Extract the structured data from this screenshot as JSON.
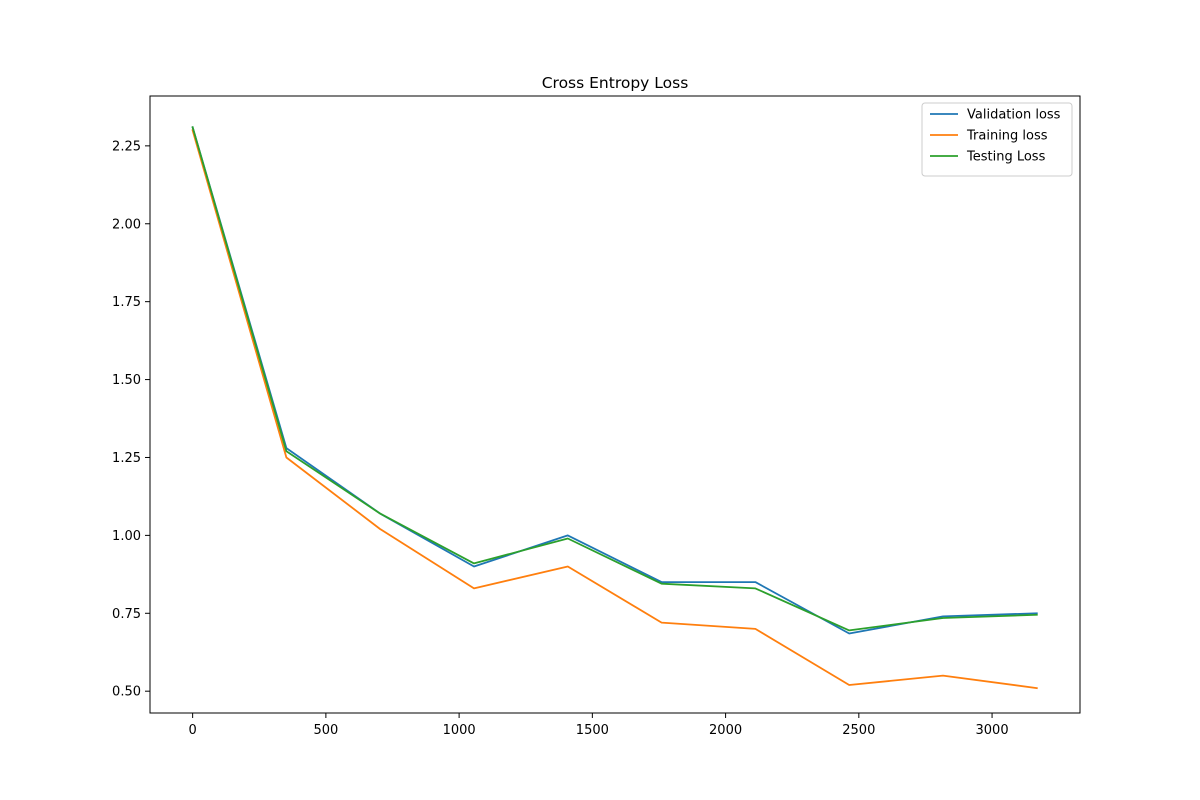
{
  "chart_data": {
    "type": "line",
    "title": "Cross Entropy Loss",
    "xlabel": "",
    "ylabel": "",
    "xlim": [
      -160,
      3330
    ],
    "ylim": [
      0.43,
      2.41
    ],
    "xticks": [
      0,
      500,
      1000,
      1500,
      2000,
      2500,
      3000
    ],
    "xtick_labels": [
      "0",
      "500",
      "1000",
      "1500",
      "2000",
      "2500",
      "3000"
    ],
    "yticks": [
      0.5,
      0.75,
      1.0,
      1.25,
      1.5,
      1.75,
      2.0,
      2.25
    ],
    "ytick_labels": [
      "0.50",
      "0.75",
      "1.00",
      "1.25",
      "1.50",
      "1.75",
      "2.00",
      "2.25"
    ],
    "grid": false,
    "legend_position": "top-right",
    "series": [
      {
        "name": "Validation loss",
        "color": "#1f77b4",
        "x": [
          0,
          352,
          704,
          1056,
          1408,
          1760,
          2112,
          2464,
          2816,
          3168
        ],
        "values": [
          2.31,
          1.28,
          1.07,
          0.9,
          1.0,
          0.85,
          0.85,
          0.685,
          0.74,
          0.75
        ]
      },
      {
        "name": "Training loss",
        "color": "#ff7f0e",
        "x": [
          0,
          352,
          704,
          1056,
          1408,
          1760,
          2112,
          2464,
          2816,
          3168
        ],
        "values": [
          2.3,
          1.25,
          1.02,
          0.83,
          0.9,
          0.72,
          0.7,
          0.52,
          0.55,
          0.51
        ]
      },
      {
        "name": "Testing Loss",
        "color": "#2ca02c",
        "x": [
          0,
          352,
          704,
          1056,
          1408,
          1760,
          2112,
          2464,
          2816,
          3168
        ],
        "values": [
          2.31,
          1.27,
          1.07,
          0.91,
          0.99,
          0.845,
          0.83,
          0.695,
          0.735,
          0.745
        ]
      }
    ]
  }
}
